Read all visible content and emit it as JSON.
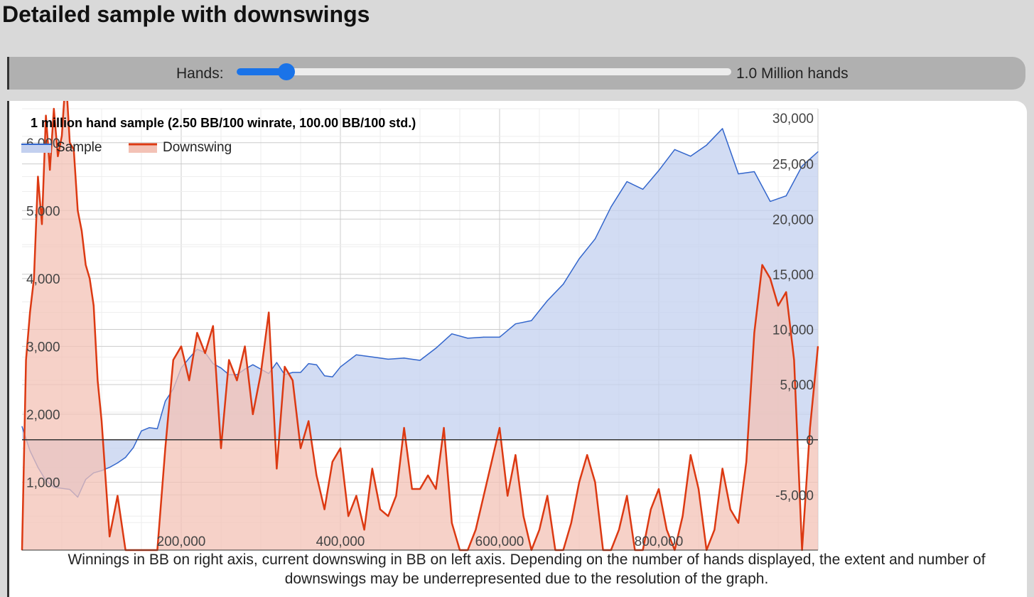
{
  "page": {
    "title": "Detailed sample with downswings"
  },
  "controls": {
    "hands_label": "Hands:",
    "hands_value": "1.0 Million hands",
    "slider_fraction": 0.1,
    "accent_color": "#1a73e8"
  },
  "caption": "Winnings in BB on right axis, current downswing in BB on left axis. Depending on the number of hands displayed, the extent and number of downswings may be underrepresented due to the resolution of the graph.",
  "chart_data": {
    "type": "area",
    "title": "1 million hand sample (2.50 BB/100 winrate, 100.00 BB/100 std.)",
    "legend_position": "top-left",
    "grid": true,
    "x_axis": {
      "ticks": [
        200000,
        400000,
        600000,
        800000
      ],
      "tick_labels": [
        "200,000",
        "400,000",
        "600,000",
        "800,000"
      ],
      "range": [
        0,
        1000000
      ]
    },
    "left_axis": {
      "series": "Downswing",
      "range": [
        0,
        6500
      ],
      "ticks": [
        1000,
        2000,
        3000,
        4000,
        5000,
        6000
      ],
      "tick_labels": [
        "1,000",
        "2,000",
        "3,000",
        "4,000",
        "5,000",
        "6,000"
      ]
    },
    "right_axis": {
      "series": "Sample",
      "range": [
        -10000,
        30000
      ],
      "ticks": [
        -5000,
        0,
        5000,
        10000,
        15000,
        20000,
        25000,
        30000
      ],
      "tick_labels": [
        "-5,000",
        "0",
        "5,000",
        "10,000",
        "15,000",
        "20,000",
        "25,000",
        "30,000"
      ]
    },
    "series": [
      {
        "name": "Sample",
        "color": "#3366cc",
        "fill": "#c3d0ef",
        "axis": "right",
        "x": [
          0,
          10000,
          20000,
          30000,
          40000,
          50000,
          60000,
          70000,
          80000,
          90000,
          100000,
          110000,
          120000,
          130000,
          140000,
          150000,
          160000,
          170000,
          180000,
          190000,
          200000,
          210000,
          220000,
          230000,
          240000,
          250000,
          260000,
          270000,
          280000,
          290000,
          300000,
          310000,
          320000,
          330000,
          340000,
          350000,
          360000,
          370000,
          380000,
          390000,
          400000,
          420000,
          440000,
          460000,
          480000,
          500000,
          520000,
          540000,
          560000,
          580000,
          600000,
          620000,
          640000,
          660000,
          680000,
          700000,
          720000,
          740000,
          760000,
          780000,
          800000,
          820000,
          840000,
          860000,
          880000,
          900000,
          920000,
          940000,
          960000,
          980000,
          1000000
        ],
        "values": [
          1200,
          -1000,
          -2500,
          -3700,
          -4300,
          -4400,
          -4500,
          -5200,
          -3600,
          -3000,
          -2800,
          -2500,
          -2100,
          -1600,
          -700,
          800,
          1100,
          1000,
          3500,
          4600,
          6500,
          7400,
          8200,
          7900,
          6900,
          6500,
          5900,
          5900,
          6400,
          6800,
          6400,
          6000,
          7000,
          5900,
          6100,
          6100,
          6900,
          6800,
          5800,
          5700,
          6600,
          7700,
          7500,
          7300,
          7400,
          7200,
          8300,
          9600,
          9200,
          9300,
          9300,
          10500,
          10800,
          12600,
          14100,
          16400,
          18200,
          21100,
          23400,
          22700,
          24400,
          26300,
          25700,
          26700,
          28200,
          24100,
          24300,
          21600,
          22100,
          24800,
          26100
        ]
      },
      {
        "name": "Downswing",
        "color": "#dc3912",
        "fill": "#f3c2b6",
        "axis": "left",
        "x": [
          0,
          5000,
          10000,
          15000,
          20000,
          25000,
          30000,
          35000,
          40000,
          45000,
          50000,
          55000,
          60000,
          65000,
          70000,
          75000,
          80000,
          85000,
          90000,
          95000,
          100000,
          110000,
          120000,
          130000,
          140000,
          150000,
          160000,
          170000,
          180000,
          190000,
          200000,
          210000,
          220000,
          230000,
          240000,
          250000,
          260000,
          270000,
          280000,
          290000,
          300000,
          310000,
          320000,
          330000,
          340000,
          350000,
          360000,
          370000,
          380000,
          390000,
          400000,
          410000,
          420000,
          430000,
          440000,
          450000,
          460000,
          470000,
          480000,
          490000,
          500000,
          510000,
          520000,
          530000,
          540000,
          550000,
          560000,
          570000,
          580000,
          590000,
          600000,
          610000,
          620000,
          630000,
          640000,
          650000,
          660000,
          670000,
          680000,
          690000,
          700000,
          710000,
          720000,
          730000,
          740000,
          750000,
          760000,
          770000,
          780000,
          790000,
          800000,
          810000,
          820000,
          830000,
          840000,
          850000,
          860000,
          870000,
          880000,
          890000,
          900000,
          910000,
          920000,
          930000,
          940000,
          950000,
          960000,
          970000,
          980000,
          990000,
          1000000
        ],
        "values": [
          0,
          2800,
          3500,
          4000,
          5500,
          4800,
          6400,
          5600,
          6500,
          5800,
          6100,
          7000,
          6000,
          5900,
          5000,
          4700,
          4200,
          4000,
          3600,
          2500,
          1900,
          200,
          800,
          0,
          0,
          0,
          0,
          0,
          1500,
          2800,
          3000,
          2500,
          3200,
          2900,
          3300,
          1500,
          2800,
          2500,
          3000,
          2000,
          2600,
          3500,
          1200,
          2700,
          2500,
          1500,
          1900,
          1100,
          600,
          1300,
          1500,
          500,
          800,
          300,
          1200,
          600,
          500,
          800,
          1800,
          900,
          900,
          1100,
          900,
          1800,
          400,
          0,
          0,
          300,
          800,
          1300,
          1800,
          800,
          1400,
          500,
          0,
          300,
          800,
          0,
          0,
          400,
          1000,
          1400,
          1000,
          0,
          0,
          300,
          800,
          0,
          0,
          600,
          900,
          300,
          0,
          500,
          1400,
          900,
          0,
          300,
          1200,
          600,
          400,
          1300,
          3200,
          4200,
          4000,
          3600,
          3800,
          2800,
          0,
          1800,
          3000
        ],
        "downswing_peak": 6700
      }
    ]
  }
}
